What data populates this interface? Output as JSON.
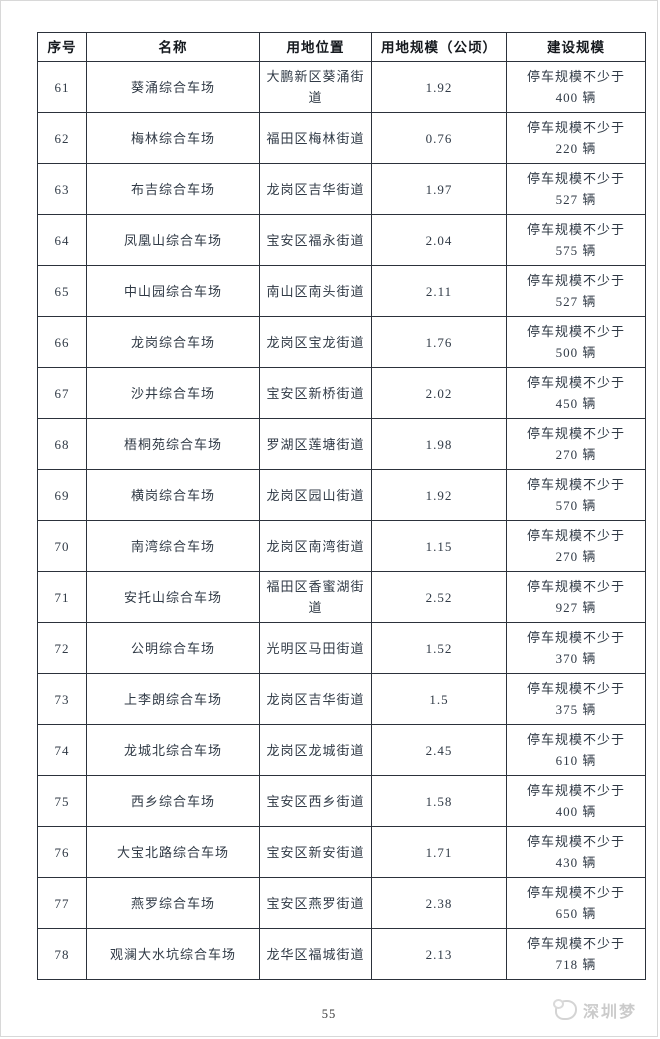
{
  "page": {
    "number": "55"
  },
  "watermark": {
    "text": "深圳梦",
    "icon": "logo-blob-icon"
  },
  "colors": {
    "border": "#2c323b",
    "text": "#303a46",
    "header_text": "#15191e",
    "watermark": "#cbcbcb"
  },
  "table": {
    "headers": [
      "序号",
      "名称",
      "用地位置",
      "用地规模（公顷）",
      "建设规模"
    ],
    "capacity_prefix": "停车规模不少于",
    "rows": [
      {
        "no": "61",
        "name": "葵涌综合车场",
        "location": "大鹏新区葵涌街道",
        "area": "1.92",
        "capacity": "400 辆"
      },
      {
        "no": "62",
        "name": "梅林综合车场",
        "location": "福田区梅林街道",
        "area": "0.76",
        "capacity": "220 辆"
      },
      {
        "no": "63",
        "name": "布吉综合车场",
        "location": "龙岗区吉华街道",
        "area": "1.97",
        "capacity": "527 辆"
      },
      {
        "no": "64",
        "name": "凤凰山综合车场",
        "location": "宝安区福永街道",
        "area": "2.04",
        "capacity": "575 辆"
      },
      {
        "no": "65",
        "name": "中山园综合车场",
        "location": "南山区南头街道",
        "area": "2.11",
        "capacity": "527 辆"
      },
      {
        "no": "66",
        "name": "龙岗综合车场",
        "location": "龙岗区宝龙街道",
        "area": "1.76",
        "capacity": "500 辆"
      },
      {
        "no": "67",
        "name": "沙井综合车场",
        "location": "宝安区新桥街道",
        "area": "2.02",
        "capacity": "450 辆"
      },
      {
        "no": "68",
        "name": "梧桐苑综合车场",
        "location": "罗湖区莲塘街道",
        "area": "1.98",
        "capacity": "270 辆"
      },
      {
        "no": "69",
        "name": "横岗综合车场",
        "location": "龙岗区园山街道",
        "area": "1.92",
        "capacity": "570 辆"
      },
      {
        "no": "70",
        "name": "南湾综合车场",
        "location": "龙岗区南湾街道",
        "area": "1.15",
        "capacity": "270 辆"
      },
      {
        "no": "71",
        "name": "安托山综合车场",
        "location": "福田区香蜜湖街道",
        "area": "2.52",
        "capacity": "927 辆"
      },
      {
        "no": "72",
        "name": "公明综合车场",
        "location": "光明区马田街道",
        "area": "1.52",
        "capacity": "370 辆"
      },
      {
        "no": "73",
        "name": "上李朗综合车场",
        "location": "龙岗区吉华街道",
        "area": "1.5",
        "capacity": "375 辆"
      },
      {
        "no": "74",
        "name": "龙城北综合车场",
        "location": "龙岗区龙城街道",
        "area": "2.45",
        "capacity": "610 辆"
      },
      {
        "no": "75",
        "name": "西乡综合车场",
        "location": "宝安区西乡街道",
        "area": "1.58",
        "capacity": "400 辆"
      },
      {
        "no": "76",
        "name": "大宝北路综合车场",
        "location": "宝安区新安街道",
        "area": "1.71",
        "capacity": "430 辆"
      },
      {
        "no": "77",
        "name": "燕罗综合车场",
        "location": "宝安区燕罗街道",
        "area": "2.38",
        "capacity": "650 辆"
      },
      {
        "no": "78",
        "name": "观澜大水坑综合车场",
        "location": "龙华区福城街道",
        "area": "2.13",
        "capacity": "718 辆"
      }
    ]
  }
}
